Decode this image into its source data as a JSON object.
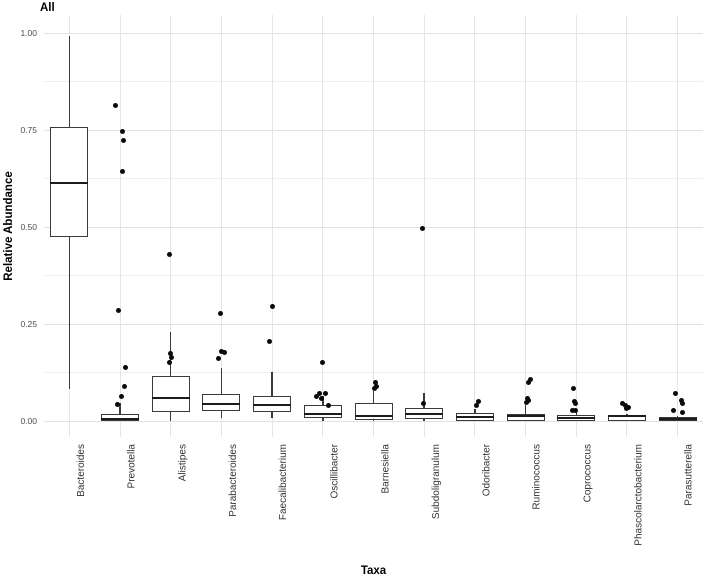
{
  "title": "All",
  "colors": {
    "box_border": "#3a3a3a",
    "median_line": "#1c1c1c",
    "whisker": "#3a3a3a",
    "point": "#0a0a0a",
    "grid_major": "#e2e2e2",
    "grid_minor": "#f0f0f0",
    "grid_vertical": "#e5e5e5",
    "tick_text": "#4d4d4d",
    "label_text": "#333333",
    "title_text": "#000000",
    "background": "#ffffff"
  },
  "chart_data": {
    "type": "boxplot",
    "title": "All",
    "xlabel": "Taxa",
    "ylabel": "Relative Abundance",
    "ylim": [
      0,
      1
    ],
    "y_major_ticks": [
      1.0,
      0.75,
      0.5,
      0.25,
      0.0
    ],
    "y_tick_labels": [
      "1.00",
      "0.75",
      "0.50",
      "0.25",
      "0.00"
    ],
    "y_minor_gridlines": [
      0.875,
      0.625,
      0.375,
      0.125
    ],
    "grid": true,
    "legend": "none",
    "categories": [
      "Bacteroides",
      "Prevotella",
      "Alistipes",
      "Parabacteroides",
      "Faecalibacterium",
      "Oscillibacter",
      "Barnesiella",
      "Subdoligranulum",
      "Odoribacter",
      "Ruminococcus",
      "Coprococcus",
      "Phascolarctobacterium",
      "Parasutterella"
    ],
    "series": [
      {
        "name": "Bacteroides",
        "whisker_low": 0.082,
        "q1": 0.474,
        "median": 0.613,
        "q3": 0.757,
        "whisker_high": 0.993,
        "points": []
      },
      {
        "name": "Prevotella",
        "whisker_low": 0.0,
        "q1": 0.001,
        "median": 0.005,
        "q3": 0.018,
        "whisker_high": 0.046,
        "points": [
          {
            "dx": -5,
            "v": 0.812
          },
          {
            "dx": 2,
            "v": 0.747
          },
          {
            "dx": 3,
            "v": 0.722
          },
          {
            "dx": 2,
            "v": 0.644
          },
          {
            "dx": -2,
            "v": 0.286
          },
          {
            "dx": 5,
            "v": 0.139
          },
          {
            "dx": 4,
            "v": 0.09
          },
          {
            "dx": 1,
            "v": 0.064
          },
          {
            "dx": -3,
            "v": 0.042
          }
        ]
      },
      {
        "name": "Alistipes",
        "whisker_low": 0.0,
        "q1": 0.023,
        "median": 0.059,
        "q3": 0.115,
        "whisker_high": 0.229,
        "points": [
          {
            "dx": -1,
            "v": 0.428
          },
          {
            "dx": 0,
            "v": 0.175
          },
          {
            "dx": 1,
            "v": 0.163
          },
          {
            "dx": -1,
            "v": 0.15
          }
        ]
      },
      {
        "name": "Parabacteroides",
        "whisker_low": 0.007,
        "q1": 0.026,
        "median": 0.043,
        "q3": 0.069,
        "whisker_high": 0.136,
        "points": [
          {
            "dx": -1,
            "v": 0.276
          },
          {
            "dx": 0,
            "v": 0.18
          },
          {
            "dx": 3,
            "v": 0.176
          },
          {
            "dx": -3,
            "v": 0.162
          }
        ]
      },
      {
        "name": "Faecalibacterium",
        "whisker_low": 0.008,
        "q1": 0.022,
        "median": 0.041,
        "q3": 0.065,
        "whisker_high": 0.127,
        "points": [
          {
            "dx": 0,
            "v": 0.296
          },
          {
            "dx": -3,
            "v": 0.204
          }
        ]
      },
      {
        "name": "Oscillibacter",
        "whisker_low": 0.0,
        "q1": 0.007,
        "median": 0.018,
        "q3": 0.04,
        "whisker_high": 0.064,
        "points": [
          {
            "dx": 0,
            "v": 0.15
          },
          {
            "dx": -3,
            "v": 0.072
          },
          {
            "dx": 3,
            "v": 0.07
          },
          {
            "dx": -6,
            "v": 0.064
          },
          {
            "dx": -1,
            "v": 0.059
          },
          {
            "dx": 6,
            "v": 0.041
          }
        ]
      },
      {
        "name": "Barnesiella",
        "whisker_low": 0.0,
        "q1": 0.003,
        "median": 0.013,
        "q3": 0.046,
        "whisker_high": 0.078,
        "points": [
          {
            "dx": 2,
            "v": 0.099
          },
          {
            "dx": 3,
            "v": 0.088
          },
          {
            "dx": 1,
            "v": 0.083
          }
        ]
      },
      {
        "name": "Subdoligranulum",
        "whisker_low": 0.0,
        "q1": 0.005,
        "median": 0.017,
        "q3": 0.033,
        "whisker_high": 0.071,
        "points": [
          {
            "dx": -2,
            "v": 0.495
          },
          {
            "dx": -1,
            "v": 0.046
          }
        ]
      },
      {
        "name": "Odoribacter",
        "whisker_low": 0.0,
        "q1": 0.001,
        "median": 0.01,
        "q3": 0.021,
        "whisker_high": 0.031,
        "points": [
          {
            "dx": 4,
            "v": 0.05
          },
          {
            "dx": 2,
            "v": 0.04
          }
        ]
      },
      {
        "name": "Ruminococcus",
        "whisker_low": 0.0,
        "q1": 0.001,
        "median": 0.013,
        "q3": 0.018,
        "whisker_high": 0.041,
        "points": [
          {
            "dx": 5,
            "v": 0.106
          },
          {
            "dx": 3,
            "v": 0.099
          },
          {
            "dx": 2,
            "v": 0.057
          },
          {
            "dx": 3,
            "v": 0.052
          },
          {
            "dx": 1,
            "v": 0.047
          }
        ]
      },
      {
        "name": "Coprococcus",
        "whisker_low": 0.0,
        "q1": 0.001,
        "median": 0.008,
        "q3": 0.015,
        "whisker_high": 0.022,
        "points": [
          {
            "dx": -3,
            "v": 0.085
          },
          {
            "dx": -2,
            "v": 0.049
          },
          {
            "dx": -1,
            "v": 0.044
          },
          {
            "dx": -4,
            "v": 0.028
          },
          {
            "dx": -1,
            "v": 0.026
          }
        ]
      },
      {
        "name": "Phascolarctobacterium",
        "whisker_low": 0.0,
        "q1": 0.001,
        "median": 0.012,
        "q3": 0.016,
        "whisker_high": 0.018,
        "points": [
          {
            "dx": -4,
            "v": 0.044
          },
          {
            "dx": -1,
            "v": 0.039
          },
          {
            "dx": 2,
            "v": 0.034
          },
          {
            "dx": 0,
            "v": 0.031
          }
        ]
      },
      {
        "name": "Parasutterella",
        "whisker_low": 0.0,
        "q1": 0.001,
        "median": 0.005,
        "q3": 0.01,
        "whisker_high": 0.013,
        "points": [
          {
            "dx": -2,
            "v": 0.072
          },
          {
            "dx": 4,
            "v": 0.052
          },
          {
            "dx": 5,
            "v": 0.046
          },
          {
            "dx": -4,
            "v": 0.028
          },
          {
            "dx": 5,
            "v": 0.021
          }
        ]
      }
    ]
  }
}
